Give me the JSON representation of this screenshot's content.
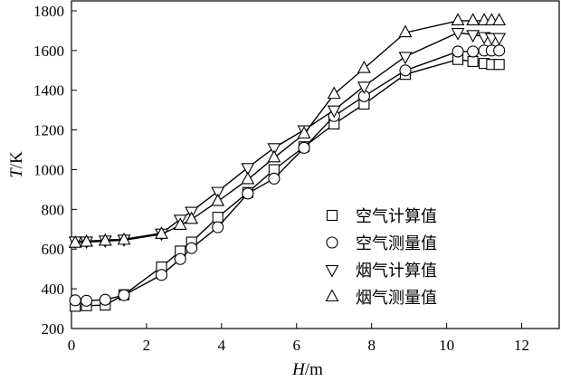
{
  "chart_data": {
    "type": "line",
    "title": "",
    "xlabel": {
      "var": "H",
      "unit": "m"
    },
    "ylabel": {
      "var": "T",
      "unit": "K"
    },
    "xlim": [
      0,
      13
    ],
    "ylim": [
      200,
      1850
    ],
    "xticks": [
      0,
      2,
      4,
      6,
      8,
      10,
      12
    ],
    "yticks": [
      200,
      400,
      600,
      800,
      1000,
      1200,
      1400,
      1600,
      1800
    ],
    "grid": false,
    "legend": "center-right",
    "series": [
      {
        "name": "空气计算值",
        "marker": "square",
        "x": [
          0.1,
          0.4,
          0.9,
          1.4,
          2.4,
          2.9,
          3.2,
          3.9,
          4.7,
          5.4,
          6.2,
          7.0,
          7.8,
          8.9,
          10.3,
          10.7,
          11.0,
          11.2,
          11.4
        ],
        "y": [
          312,
          315,
          318,
          370,
          510,
          590,
          635,
          760,
          885,
          1000,
          1115,
          1230,
          1330,
          1480,
          1555,
          1545,
          1535,
          1530,
          1530
        ]
      },
      {
        "name": "空气测量值",
        "marker": "circle",
        "x": [
          0.1,
          0.4,
          0.9,
          1.4,
          2.4,
          2.9,
          3.2,
          3.9,
          4.7,
          5.4,
          6.2,
          7.0,
          7.8,
          8.9,
          10.3,
          10.7,
          11.0,
          11.2,
          11.4
        ],
        "y": [
          342,
          340,
          345,
          368,
          470,
          550,
          605,
          710,
          880,
          955,
          1110,
          1270,
          1370,
          1500,
          1595,
          1595,
          1600,
          1600,
          1600
        ]
      },
      {
        "name": "烟气计算值",
        "marker": "triangle-down",
        "x": [
          0.1,
          0.4,
          0.9,
          1.4,
          2.4,
          2.9,
          3.2,
          3.9,
          4.7,
          5.4,
          6.2,
          7.0,
          7.8,
          8.9,
          10.3,
          10.7,
          11.0,
          11.2,
          11.4
        ],
        "y": [
          640,
          640,
          645,
          650,
          680,
          750,
          790,
          890,
          1010,
          1110,
          1200,
          1300,
          1420,
          1570,
          1690,
          1680,
          1670,
          1665,
          1665
        ]
      },
      {
        "name": "烟气测量值",
        "marker": "triangle-up",
        "x": [
          0.1,
          0.4,
          0.9,
          1.4,
          2.4,
          2.9,
          3.2,
          3.9,
          4.7,
          5.4,
          6.2,
          7.0,
          7.8,
          8.9,
          10.3,
          10.7,
          11.0,
          11.2,
          11.4
        ],
        "y": [
          630,
          635,
          640,
          645,
          675,
          720,
          750,
          840,
          950,
          1060,
          1180,
          1380,
          1510,
          1690,
          1750,
          1750,
          1750,
          1750,
          1750
        ]
      }
    ]
  }
}
